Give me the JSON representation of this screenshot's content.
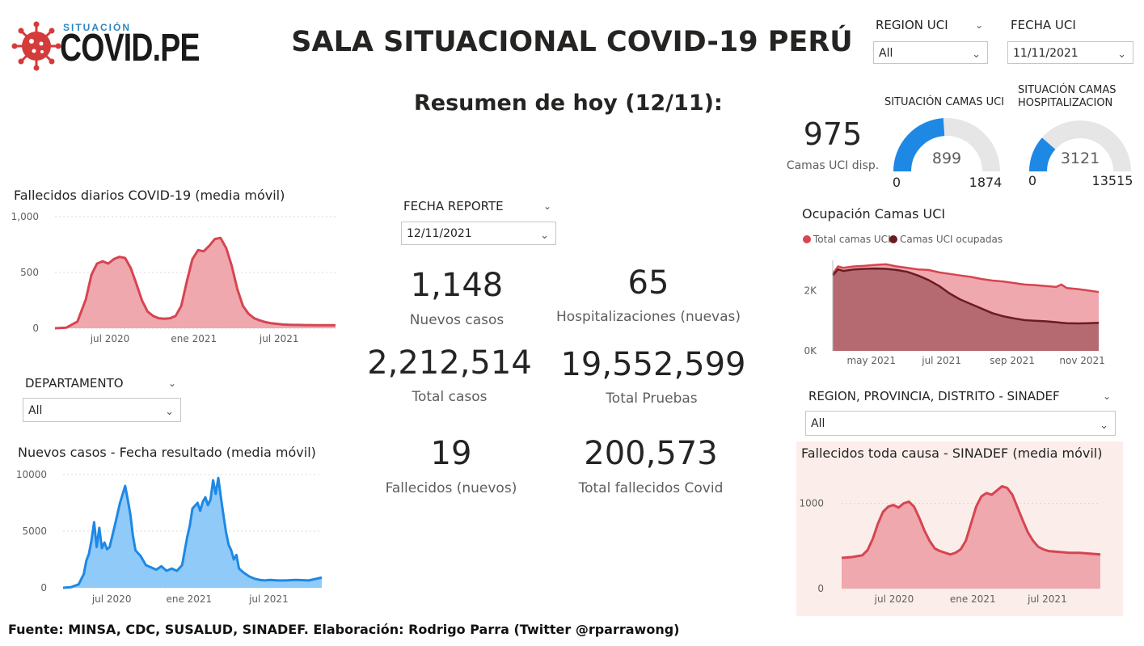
{
  "header": {
    "logo_small": "SITUACIÓN",
    "logo_main": "COVID.PE",
    "title": "SALA SITUACIONAL COVID-19 PERÚ",
    "subtitle": "Resumen de hoy (12/11):"
  },
  "filters": {
    "region_uci": {
      "label": "REGION UCI",
      "value": "All"
    },
    "fecha_uci": {
      "label": "FECHA UCI",
      "value": "11/11/2021"
    },
    "fecha_reporte": {
      "label": "FECHA REPORTE",
      "value": "12/11/2021"
    },
    "departamento": {
      "label": "DEPARTAMENTO",
      "value": "All"
    },
    "region_sinadef": {
      "label": "REGION, PROVINCIA, DISTRITO - SINADEF",
      "value": "All"
    }
  },
  "uci": {
    "camas_value": "975",
    "camas_label": "Camas UCI disp.",
    "gauge_uci": {
      "title": "SITUACIÓN CAMAS UCI",
      "value": 899,
      "min": 0,
      "max": 1874,
      "value_label": "899",
      "min_label": "0",
      "max_label": "1874"
    },
    "gauge_hosp": {
      "title1": "SITUACIÓN CAMAS",
      "title2": "HOSPITALIZACION",
      "value": 3121,
      "min": 0,
      "max": 13515,
      "value_label": "3121",
      "min_label": "0",
      "max_label": "13515"
    }
  },
  "cards": {
    "nuevos_casos": {
      "value": "1,148",
      "label": "Nuevos casos"
    },
    "hospitalizaciones": {
      "value": "65",
      "label": "Hospitalizaciones (nuevas)"
    },
    "total_casos": {
      "value": "2,212,514",
      "label": "Total casos"
    },
    "total_pruebas": {
      "value": "19,552,599",
      "label": "Total Pruebas"
    },
    "fallecidos": {
      "value": "19",
      "label": "Fallecidos (nuevos)"
    },
    "total_fallecidos": {
      "value": "200,573",
      "label": "Total fallecidos Covid"
    }
  },
  "footer": "Fuente: MINSA, CDC, SUSALUD, SINADEF. Elaboración: Rodrigo Parra (Twitter @rparrawong)",
  "colors": {
    "red": "#d64550",
    "red_fill": "#efa8ae",
    "blue": "#1e88e5",
    "blue_fill": "#90caf9",
    "dark_red": "#6b1c23",
    "gauge_grey": "#e6e6e6"
  },
  "chart_data": [
    {
      "id": "fallecidos",
      "type": "area",
      "title": "Fallecidos diarios COVID-19 (media móvil)",
      "y_ticks": [
        "1,000",
        "500",
        "0"
      ],
      "y_tick_values": [
        1000,
        500,
        0
      ],
      "ylim": [
        0,
        1000
      ],
      "x_ticks": [
        "jul 2020",
        "ene 2021",
        "jul 2021"
      ],
      "x_tick_pos": [
        0.196,
        0.495,
        0.799
      ],
      "x": [
        0,
        0.04,
        0.08,
        0.11,
        0.13,
        0.15,
        0.17,
        0.19,
        0.21,
        0.23,
        0.25,
        0.27,
        0.29,
        0.31,
        0.33,
        0.35,
        0.37,
        0.39,
        0.41,
        0.43,
        0.45,
        0.47,
        0.49,
        0.51,
        0.53,
        0.55,
        0.57,
        0.59,
        0.61,
        0.63,
        0.65,
        0.67,
        0.69,
        0.71,
        0.73,
        0.75,
        0.77,
        0.79,
        0.81,
        0.83,
        0.85,
        0.87,
        0.89,
        0.91,
        0.93,
        0.95,
        0.97,
        1.0
      ],
      "values": [
        0,
        5,
        60,
        260,
        480,
        580,
        600,
        580,
        620,
        640,
        630,
        540,
        400,
        250,
        150,
        110,
        90,
        85,
        90,
        110,
        200,
        420,
        620,
        700,
        690,
        740,
        800,
        810,
        720,
        560,
        350,
        200,
        130,
        90,
        70,
        55,
        45,
        40,
        35,
        32,
        30,
        30,
        28,
        28,
        27,
        27,
        27,
        27
      ]
    },
    {
      "id": "nuevos_casos",
      "type": "area",
      "title": "Nuevos casos - Fecha resultado (media móvil)",
      "y_ticks": [
        "10000",
        "5000",
        "0"
      ],
      "y_tick_values": [
        10000,
        5000,
        0
      ],
      "ylim": [
        0,
        10000
      ],
      "x_ticks": [
        "jul 2020",
        "ene 2021",
        "jul 2021"
      ],
      "x_tick_pos": [
        0.188,
        0.487,
        0.795
      ],
      "x": [
        0,
        0.03,
        0.06,
        0.08,
        0.09,
        0.1,
        0.11,
        0.12,
        0.13,
        0.14,
        0.15,
        0.16,
        0.17,
        0.18,
        0.2,
        0.22,
        0.24,
        0.25,
        0.26,
        0.27,
        0.28,
        0.3,
        0.32,
        0.34,
        0.36,
        0.38,
        0.4,
        0.42,
        0.44,
        0.46,
        0.48,
        0.49,
        0.5,
        0.52,
        0.53,
        0.54,
        0.55,
        0.56,
        0.57,
        0.58,
        0.59,
        0.6,
        0.61,
        0.62,
        0.63,
        0.64,
        0.65,
        0.66,
        0.67,
        0.68,
        0.7,
        0.72,
        0.74,
        0.76,
        0.78,
        0.8,
        0.83,
        0.86,
        0.9,
        0.95,
        1.0
      ],
      "values": [
        0,
        50,
        300,
        1200,
        2400,
        3000,
        4200,
        5800,
        3600,
        5300,
        3500,
        4000,
        3400,
        3600,
        5500,
        7500,
        9000,
        7800,
        6500,
        4600,
        3300,
        2800,
        2000,
        1800,
        1600,
        1900,
        1500,
        1700,
        1500,
        2000,
        4500,
        5500,
        7000,
        7500,
        6800,
        7600,
        8000,
        7300,
        7800,
        9500,
        8300,
        9700,
        8000,
        6400,
        4900,
        3800,
        3300,
        2500,
        2900,
        1700,
        1300,
        1000,
        800,
        700,
        650,
        700,
        650,
        650,
        700,
        650,
        900
      ]
    },
    {
      "id": "ocupacion_uci",
      "type": "area",
      "title": "Ocupación Camas UCI",
      "legend": [
        "Total camas UCI",
        "Camas UCI ocupadas"
      ],
      "y_ticks": [
        "2K",
        "0K"
      ],
      "y_tick_values": [
        2000,
        0
      ],
      "ylim": [
        0,
        3000
      ],
      "x_ticks": [
        "may 2021",
        "jul 2021",
        "sep 2021",
        "nov 2021"
      ],
      "x_tick_pos": [
        0.145,
        0.409,
        0.675,
        0.938
      ],
      "x": [
        0,
        0.02,
        0.04,
        0.08,
        0.12,
        0.16,
        0.2,
        0.24,
        0.28,
        0.32,
        0.36,
        0.4,
        0.44,
        0.48,
        0.52,
        0.56,
        0.6,
        0.64,
        0.68,
        0.72,
        0.76,
        0.8,
        0.84,
        0.86,
        0.88,
        0.92,
        0.96,
        1.0
      ],
      "series": [
        {
          "name": "Total camas UCI",
          "values": [
            2550,
            2800,
            2750,
            2800,
            2820,
            2850,
            2870,
            2800,
            2750,
            2700,
            2680,
            2600,
            2550,
            2500,
            2450,
            2380,
            2330,
            2300,
            2250,
            2200,
            2180,
            2150,
            2120,
            2200,
            2080,
            2050,
            2000,
            1950
          ]
        },
        {
          "name": "Camas UCI ocupadas",
          "values": [
            2500,
            2700,
            2650,
            2700,
            2720,
            2730,
            2720,
            2680,
            2620,
            2500,
            2350,
            2150,
            1900,
            1700,
            1550,
            1400,
            1250,
            1150,
            1080,
            1020,
            1000,
            980,
            950,
            930,
            920,
            910,
            920,
            930
          ]
        }
      ]
    },
    {
      "id": "fallecidos_sinadef",
      "type": "area",
      "title": "Fallecidos toda causa - SINADEF (media móvil)",
      "y_ticks": [
        "1000",
        "0"
      ],
      "y_tick_values": [
        1000,
        0
      ],
      "ylim": [
        0,
        1450
      ],
      "x_ticks": [
        "jul 2020",
        "ene 2021",
        "jul 2021"
      ],
      "x_tick_pos": [
        0.203,
        0.507,
        0.795
      ],
      "x": [
        0,
        0.04,
        0.08,
        0.1,
        0.12,
        0.14,
        0.16,
        0.18,
        0.2,
        0.22,
        0.24,
        0.26,
        0.28,
        0.3,
        0.32,
        0.34,
        0.36,
        0.38,
        0.4,
        0.42,
        0.44,
        0.46,
        0.48,
        0.5,
        0.52,
        0.54,
        0.56,
        0.58,
        0.6,
        0.62,
        0.64,
        0.66,
        0.68,
        0.7,
        0.72,
        0.74,
        0.76,
        0.78,
        0.8,
        0.84,
        0.88,
        0.92,
        0.96,
        1.0
      ],
      "values": [
        360,
        370,
        390,
        450,
        580,
        760,
        900,
        960,
        980,
        950,
        1000,
        1020,
        960,
        830,
        680,
        560,
        470,
        440,
        420,
        400,
        420,
        460,
        560,
        760,
        960,
        1080,
        1120,
        1100,
        1150,
        1200,
        1180,
        1100,
        950,
        800,
        660,
        560,
        490,
        460,
        440,
        430,
        420,
        420,
        410,
        400
      ]
    }
  ]
}
